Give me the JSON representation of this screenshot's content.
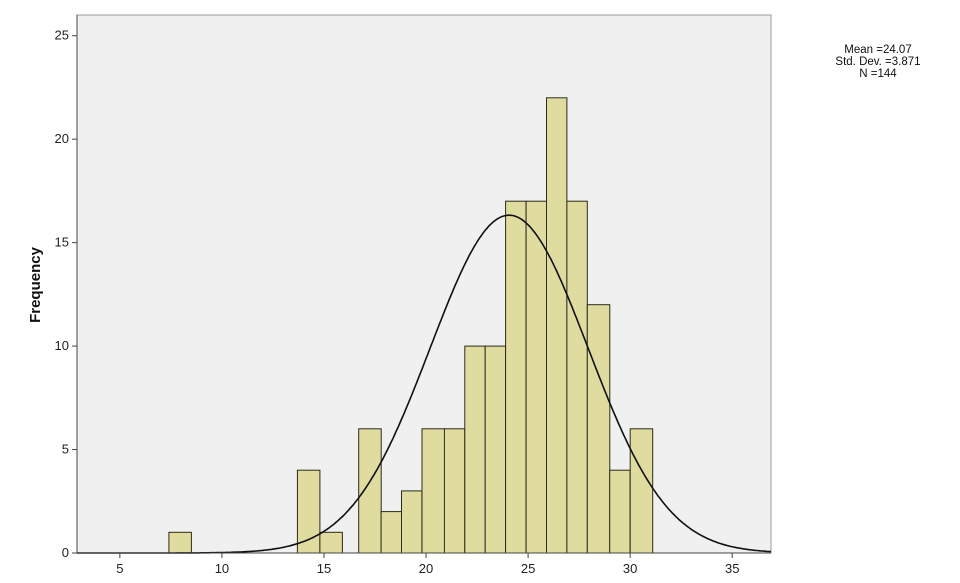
{
  "chart_data": {
    "type": "bar",
    "subtype": "histogram",
    "ylabel": "Frequency",
    "xlabel": "",
    "xlim": [
      2.9,
      36.9
    ],
    "ylim": [
      0,
      26
    ],
    "x_ticks": [
      5,
      10,
      15,
      20,
      25,
      30,
      35
    ],
    "y_ticks": [
      0,
      5,
      10,
      15,
      20,
      25
    ],
    "bin_width": 1.1,
    "bins": [
      {
        "x0": 7.4,
        "x1": 8.5,
        "value": 1
      },
      {
        "x0": 13.7,
        "x1": 14.8,
        "value": 4
      },
      {
        "x0": 14.8,
        "x1": 15.9,
        "value": 1
      },
      {
        "x0": 16.7,
        "x1": 17.8,
        "value": 6
      },
      {
        "x0": 17.8,
        "x1": 18.8,
        "value": 2
      },
      {
        "x0": 18.8,
        "x1": 19.8,
        "value": 3
      },
      {
        "x0": 19.8,
        "x1": 20.9,
        "value": 6
      },
      {
        "x0": 20.9,
        "x1": 21.9,
        "value": 6
      },
      {
        "x0": 21.9,
        "x1": 22.9,
        "value": 10
      },
      {
        "x0": 22.9,
        "x1": 23.9,
        "value": 10
      },
      {
        "x0": 23.9,
        "x1": 24.9,
        "value": 17
      },
      {
        "x0": 24.9,
        "x1": 25.9,
        "value": 17
      },
      {
        "x0": 25.9,
        "x1": 26.9,
        "value": 22
      },
      {
        "x0": 26.9,
        "x1": 27.9,
        "value": 17
      },
      {
        "x0": 27.9,
        "x1": 29.0,
        "value": 12
      },
      {
        "x0": 29.0,
        "x1": 30.0,
        "value": 4
      },
      {
        "x0": 30.0,
        "x1": 31.1,
        "value": 6
      }
    ],
    "normal_curve": {
      "mean": 24.07,
      "sd": 3.871,
      "n": 144,
      "bin_width": 1.1
    },
    "grid": false,
    "legend": "none",
    "colors": {
      "bar_fill": "#e0dca0",
      "bar_stroke": "#2b2b1a",
      "plot_bg": "#f0f0f0",
      "curve": "#111111"
    }
  },
  "stats": {
    "mean": "Mean =24.07",
    "std_dev": "Std. Dev. =3.871",
    "n": "N =144"
  }
}
